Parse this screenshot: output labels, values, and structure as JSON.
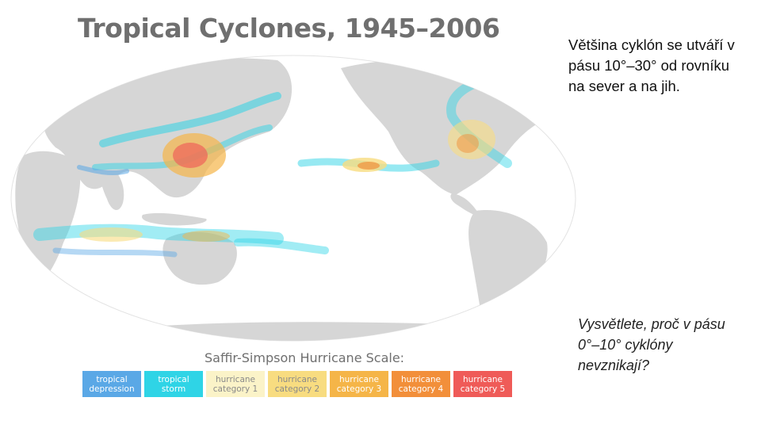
{
  "map": {
    "title": "Tropical Cyclones, 1945–2006",
    "scale_title": "Saffir-Simpson Hurricane Scale:",
    "scale": [
      {
        "line1": "tropical",
        "line2": "depression",
        "color": "#5aa8e6",
        "text_dark": false
      },
      {
        "line1": "tropical",
        "line2": "storm",
        "color": "#2fd4e6",
        "text_dark": false
      },
      {
        "line1": "hurricane",
        "line2": "category 1",
        "color": "#fbf3c8",
        "text_dark": true
      },
      {
        "line1": "hurricane",
        "line2": "category 2",
        "color": "#f8dc80",
        "text_dark": true
      },
      {
        "line1": "hurricane",
        "line2": "category 3",
        "color": "#f5b548",
        "text_dark": false
      },
      {
        "line1": "hurricane",
        "line2": "category 4",
        "color": "#f28f3a",
        "text_dark": false
      },
      {
        "line1": "hurricane",
        "line2": "category 5",
        "color": "#ef5b58",
        "text_dark": false
      }
    ],
    "land_color": "#d6d6d6",
    "ocean_color": "#ffffff"
  },
  "note": "Většina cyklón se utváří v pásu 10°–30° od rovníku na sever a na jih.",
  "question": "Vysvětlete, proč v pásu 0°–10° cyklóny nevznikají?"
}
